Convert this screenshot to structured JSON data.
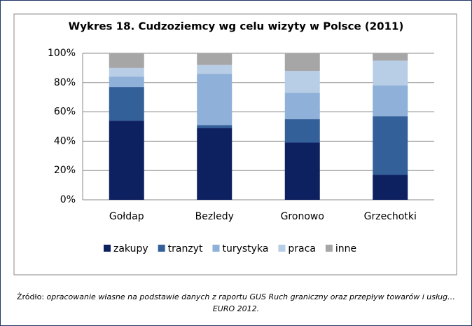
{
  "chart_data": {
    "type": "stacked_bar",
    "title": "Wykres 18. Cudzoziemcy wg celu wizyty w Polsce (2011)",
    "categories": [
      "Gołdap",
      "Bezledy",
      "Gronowo",
      "Grzechotki"
    ],
    "series": [
      {
        "name": "zakupy",
        "color": "#0d2060",
        "values": [
          54,
          49,
          39,
          17
        ]
      },
      {
        "name": "tranzyt",
        "color": "#34609a",
        "values": [
          23,
          2,
          16,
          40
        ]
      },
      {
        "name": "turystyka",
        "color": "#8fb0d8",
        "values": [
          7,
          35,
          18,
          21
        ]
      },
      {
        "name": "praca",
        "color": "#b8cde6",
        "values": [
          6,
          6,
          15,
          17
        ]
      },
      {
        "name": "inne",
        "color": "#a6a6a6",
        "values": [
          10,
          8,
          12,
          5
        ]
      }
    ],
    "ylim": [
      0,
      100
    ],
    "yticks": [
      {
        "value": 0,
        "label": "0%"
      },
      {
        "value": 20,
        "label": "20%"
      },
      {
        "value": 40,
        "label": "40%"
      },
      {
        "value": 60,
        "label": "60%"
      },
      {
        "value": 80,
        "label": "80%"
      },
      {
        "value": 100,
        "label": "100%"
      }
    ],
    "grid": true,
    "legend": "bottom",
    "source_label": "Źródło:",
    "source": "opracowanie własne na podstawie danych z raportu GUS Ruch graniczny oraz przepływ towarów i usług…EURO 2012."
  }
}
